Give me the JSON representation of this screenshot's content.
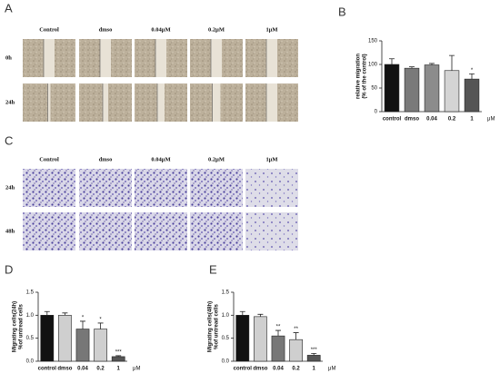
{
  "panel_labels": [
    "A",
    "B",
    "C",
    "D",
    "E"
  ],
  "panel_a": {
    "columns": [
      "Control",
      "dmso",
      "0.04μM",
      "0.2μM",
      "1μM"
    ],
    "rows": [
      "0h",
      "24h"
    ]
  },
  "panel_c": {
    "columns": [
      "Control",
      "dmso",
      "0.04μM",
      "0.2μM",
      "1μM"
    ],
    "rows": [
      "24h",
      "48h"
    ]
  },
  "chart_data": [
    {
      "type": "bar",
      "ylabel": [
        "relative migration",
        "(% of the control)"
      ],
      "categories": [
        "control",
        "dmso",
        "0.04",
        "0.2",
        "1"
      ],
      "x_unit": "μM",
      "values": [
        100,
        92,
        99,
        87,
        69
      ],
      "errors": [
        12,
        3,
        3,
        32,
        11
      ],
      "value_annotations": [
        null,
        null,
        null,
        null,
        "*"
      ],
      "colors": [
        "#111111",
        "#7a7a7a",
        "#8c8c8c",
        "#d4d4d4",
        "#555555"
      ],
      "ylim": [
        0,
        150
      ],
      "yticks": [
        0,
        50,
        100,
        150
      ]
    },
    {
      "type": "bar",
      "ylabel": [
        "Migrating cells(24h)",
        "%of untread cells"
      ],
      "categories": [
        "control",
        "dmso",
        "0.04",
        "0.2",
        "1"
      ],
      "x_unit": "μM",
      "values": [
        1.0,
        1.0,
        0.7,
        0.7,
        0.1
      ],
      "errors": [
        0.08,
        0.05,
        0.17,
        0.13,
        0.02
      ],
      "value_annotations": [
        null,
        null,
        "*",
        "*",
        "***"
      ],
      "colors": [
        "#111111",
        "#cfcfcf",
        "#777777",
        "#cfcfcf",
        "#555555"
      ],
      "ylim": [
        0,
        1.5
      ],
      "yticks": [
        {
          "value": 0,
          "label": "0.0"
        },
        {
          "value": 0.5,
          "label": "0.5"
        },
        {
          "value": 1,
          "label": "1.0"
        },
        {
          "value": 1.5,
          "label": "1.5"
        }
      ]
    },
    {
      "type": "bar",
      "ylabel": [
        "Migrating cells(48h)",
        "%of untread cells"
      ],
      "categories": [
        "control",
        "dmso",
        "0.04",
        "0.2",
        "1"
      ],
      "x_unit": "μM",
      "values": [
        1.0,
        0.97,
        0.55,
        0.47,
        0.13
      ],
      "errors": [
        0.08,
        0.05,
        0.12,
        0.15,
        0.04
      ],
      "value_annotations": [
        null,
        null,
        "**",
        "**",
        "***"
      ],
      "colors": [
        "#111111",
        "#cfcfcf",
        "#777777",
        "#cfcfcf",
        "#555555"
      ],
      "ylim": [
        0,
        1.5
      ],
      "yticks": [
        {
          "value": 0,
          "label": "0.0"
        },
        {
          "value": 0.5,
          "label": "0.5"
        },
        {
          "value": 1,
          "label": "1.0"
        },
        {
          "value": 1.5,
          "label": "1.5"
        }
      ]
    }
  ]
}
